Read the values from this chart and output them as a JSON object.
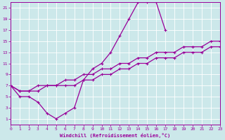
{
  "bg_color": "#cce8ea",
  "line_color": "#990099",
  "grid_color": "#ffffff",
  "xlabel": "Windchill (Refroidissement éolien,°C)",
  "xlim": [
    0,
    23
  ],
  "ylim": [
    0,
    22
  ],
  "xticks": [
    0,
    1,
    2,
    3,
    4,
    5,
    6,
    7,
    8,
    9,
    10,
    11,
    12,
    13,
    14,
    15,
    16,
    17,
    18,
    19,
    20,
    21,
    22,
    23
  ],
  "yticks": [
    1,
    3,
    5,
    7,
    9,
    11,
    13,
    15,
    17,
    19,
    21
  ],
  "curve1_x": [
    0,
    1,
    2,
    3,
    4,
    5,
    6,
    7,
    8,
    9,
    10,
    11,
    12,
    13,
    14,
    15,
    16,
    17
  ],
  "curve1_y": [
    7,
    5,
    5,
    4,
    2,
    1,
    2,
    3,
    8,
    10,
    11,
    13,
    16,
    19,
    22,
    22,
    22,
    17
  ],
  "curve2_x": [
    0,
    1,
    2,
    3,
    4,
    5,
    6,
    7,
    8,
    9,
    10,
    11,
    12,
    13,
    14,
    15,
    16,
    17,
    18,
    19,
    20,
    21,
    22,
    23
  ],
  "curve2_y": [
    7,
    6,
    6,
    7,
    7,
    7,
    8,
    8,
    9,
    9,
    10,
    10,
    11,
    11,
    12,
    12,
    13,
    13,
    13,
    14,
    14,
    14,
    15,
    15
  ],
  "curve3_x": [
    0,
    1,
    2,
    3,
    4,
    5,
    6,
    7,
    8,
    9,
    10,
    11,
    12,
    13,
    14,
    15,
    16,
    17,
    18,
    19,
    20,
    21,
    22,
    23
  ],
  "curve3_y": [
    7,
    6,
    6,
    6,
    7,
    7,
    7,
    7,
    8,
    8,
    9,
    9,
    10,
    10,
    11,
    11,
    12,
    12,
    12,
    13,
    13,
    13,
    14,
    14
  ]
}
